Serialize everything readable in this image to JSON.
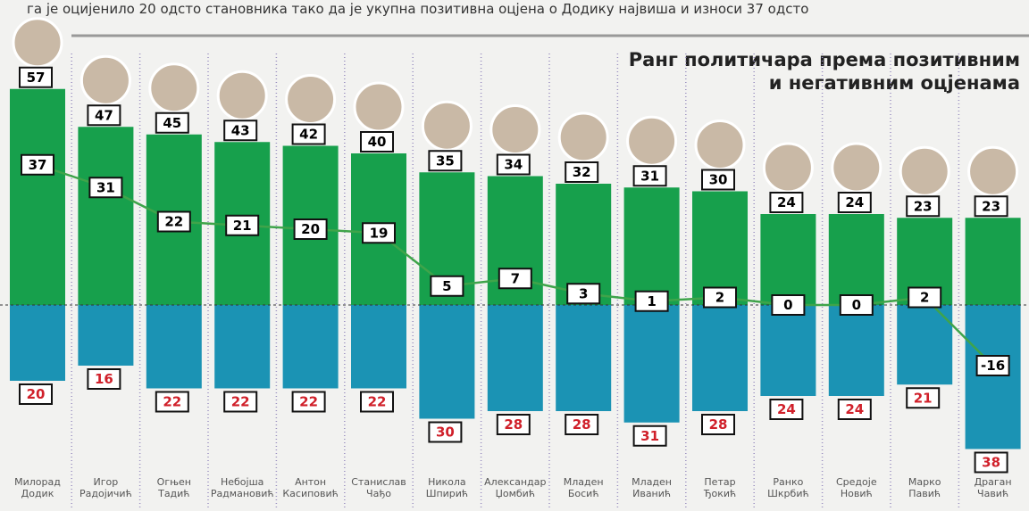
{
  "article_text": "га је оцијенило 20 одсто становника тако да је укупна позитивна оцјена о Додику највиша и износи 37 одсто",
  "chart_data": {
    "type": "bar",
    "title_lines": [
      "Ранг политичара према позитивним",
      "и негативним оцјенама"
    ],
    "categories": [
      "Милорад Додик",
      "Игор Радојичић",
      "Огњен Тадић",
      "Небојша Радмановић",
      "Антон Касиповић",
      "Станислав Чађо",
      "Никола Шпирић",
      "Александар Џомбић",
      "Младен Босић",
      "Младен Иванић",
      "Петар Ђокић",
      "Ранко Шкрбић",
      "Средоје Новић",
      "Марко Павић",
      "Драган Чавић"
    ],
    "series": [
      {
        "color": "#17a04c",
        "values": [
          57,
          47,
          45,
          43,
          42,
          40,
          35,
          34,
          32,
          31,
          30,
          24,
          24,
          23,
          23
        ]
      },
      {
        "color": "#1b93b4",
        "values": [
          20,
          16,
          22,
          22,
          22,
          22,
          30,
          28,
          28,
          31,
          28,
          24,
          24,
          21,
          38
        ]
      },
      {
        "color": "#3fa44a",
        "values": [
          37,
          31,
          22,
          21,
          20,
          19,
          5,
          7,
          3,
          1,
          2,
          0,
          0,
          2,
          -16
        ]
      }
    ]
  }
}
